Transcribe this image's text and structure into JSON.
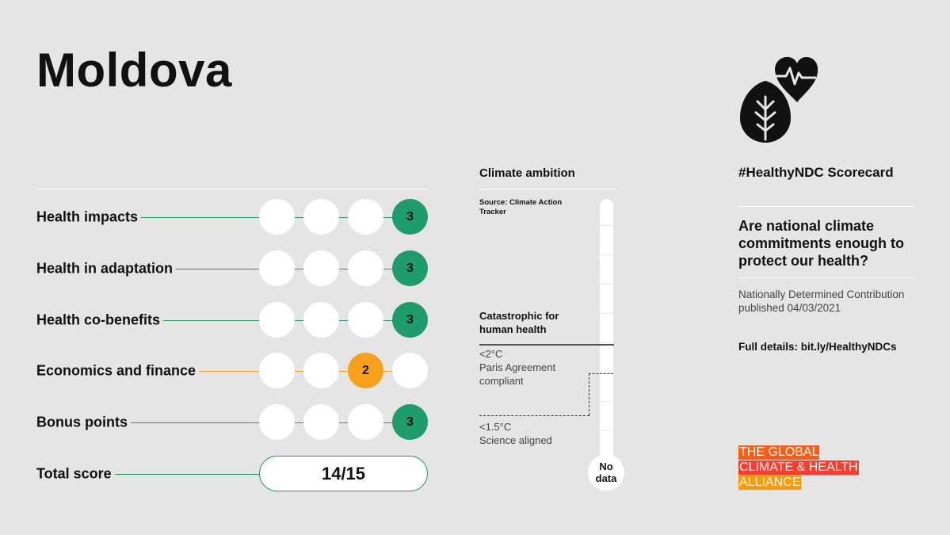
{
  "title": "Moldova",
  "colors": {
    "green": "#1e9c6c",
    "orange": "#f7a11b",
    "white": "#ffffff",
    "red": "#ff4b1f",
    "orange_brand": "#ff8a00"
  },
  "criteria": [
    {
      "label": "Health impacts",
      "score": 3,
      "max": 3,
      "status": "green"
    },
    {
      "label": "Health in adaptation",
      "score": 3,
      "max": 3,
      "status": "green"
    },
    {
      "label": "Health co-benefits",
      "score": 3,
      "max": 3,
      "status": "green"
    },
    {
      "label": "Economics and finance",
      "score": 2,
      "max": 3,
      "status": "orange"
    },
    {
      "label": "Bonus points",
      "score": 3,
      "max": 3,
      "status": "green"
    }
  ],
  "total": {
    "label": "Total score",
    "value": "14/15"
  },
  "climate_ambition": {
    "title": "Climate ambition",
    "source": "Source: Climate Action Tracker",
    "catastrophic": "Catastrophic for human health",
    "paris_line1": "<2°C",
    "paris_line2": "Paris Agreement compliant",
    "science_line1": "<1.5°C",
    "science_line2": "Science aligned",
    "no_data": "No data"
  },
  "hashtag": "#HealthyNDC Scorecard",
  "question": "Are national climate commitments enough to protect our health?",
  "ndc_info": "Nationally Determined Contribution published 04/03/2021",
  "details": "Full details: bit.ly/HealthyNDCs",
  "logo_icon": "heart-leaf-icon",
  "brand": {
    "line1": "THE GLOBAL",
    "line2": "CLIMATE & HEALTH",
    "line3": "ALLIANCE"
  }
}
